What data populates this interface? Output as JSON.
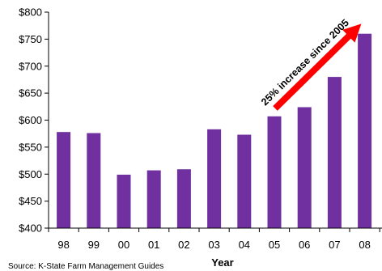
{
  "chart_data": {
    "type": "bar",
    "categories": [
      "98",
      "99",
      "00",
      "01",
      "02",
      "03",
      "04",
      "05",
      "06",
      "07",
      "08"
    ],
    "values": [
      578,
      576,
      499,
      507,
      509,
      583,
      573,
      607,
      624,
      680,
      760
    ],
    "title": "",
    "xlabel": "Year",
    "ylabel": "",
    "ylim": [
      400,
      800
    ],
    "yticks": [
      400,
      450,
      500,
      550,
      600,
      650,
      700,
      750,
      800
    ],
    "ytick_labels": [
      "$400",
      "$450",
      "$500",
      "$550",
      "$600",
      "$650",
      "$700",
      "$750",
      "$800"
    ],
    "bar_color": "#7030A0",
    "grid": false,
    "annotations": [
      {
        "text": "25% increase since 2005",
        "arrow_from_category": "05",
        "arrow_to_category": "08",
        "arrow_color": "#FF0000"
      }
    ]
  },
  "source_note": "Source: K-State Farm Management Guides"
}
